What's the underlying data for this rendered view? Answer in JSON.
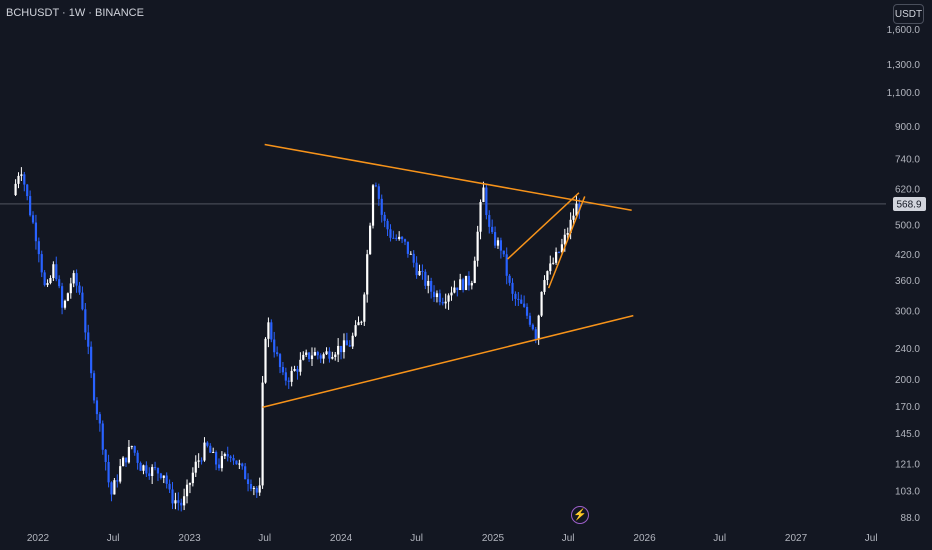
{
  "header": {
    "title": "BCHUSDT · 1W · BINANCE",
    "currency_button": "USDT"
  },
  "indicator_icon": "flash-icon",
  "colors": {
    "background": "#131722",
    "candle_up": "#ffffff",
    "candle_down": "#2962ff",
    "trendline": "#f7931a",
    "price_line": "#787b86"
  },
  "chart_data": {
    "type": "candlestick",
    "symbol": "BCHUSDT",
    "interval": "1W",
    "exchange": "BINANCE",
    "scale": "log",
    "y_ticks": [
      1600,
      1300,
      1100,
      900,
      740,
      620,
      500,
      420,
      360,
      300,
      240,
      200,
      170,
      145,
      121,
      103,
      88
    ],
    "y_tick_labels": [
      "1,600.0",
      "1,300.0",
      "1,100.0",
      "900.0",
      "740.0",
      "620.0",
      "500.0",
      "420.0",
      "360.0",
      "300.0",
      "240.0",
      "200.0",
      "170.0",
      "145.0",
      "121.0",
      "103.0",
      "88.0"
    ],
    "ylim": [
      84,
      1750
    ],
    "x_ticks": [
      {
        "label": "2022",
        "date": "2022-01-01"
      },
      {
        "label": "Jul",
        "date": "2022-07-01"
      },
      {
        "label": "2023",
        "date": "2023-01-01"
      },
      {
        "label": "Jul",
        "date": "2023-07-01"
      },
      {
        "label": "2024",
        "date": "2024-01-01"
      },
      {
        "label": "Jul",
        "date": "2024-07-01"
      },
      {
        "label": "2025",
        "date": "2025-01-01"
      },
      {
        "label": "Jul",
        "date": "2025-07-01"
      },
      {
        "label": "2026",
        "date": "2026-01-01"
      },
      {
        "label": "Jul",
        "date": "2026-07-01"
      },
      {
        "label": "2027",
        "date": "2027-01-01"
      },
      {
        "label": "Jul",
        "date": "2027-07-01"
      }
    ],
    "current_price": 568.9,
    "current_price_label": "568.9",
    "price_path": [
      [
        "2021-11-01",
        600
      ],
      [
        "2021-11-20",
        720
      ],
      [
        "2021-12-10",
        560
      ],
      [
        "2022-01-01",
        450
      ],
      [
        "2022-01-20",
        330
      ],
      [
        "2022-02-10",
        400
      ],
      [
        "2022-03-01",
        300
      ],
      [
        "2022-03-25",
        370
      ],
      [
        "2022-04-15",
        330
      ],
      [
        "2022-05-10",
        200
      ],
      [
        "2022-06-10",
        130
      ],
      [
        "2022-06-25",
        100
      ],
      [
        "2022-07-20",
        120
      ],
      [
        "2022-08-15",
        135
      ],
      [
        "2022-09-05",
        120
      ],
      [
        "2022-10-01",
        117
      ],
      [
        "2022-11-01",
        115
      ],
      [
        "2022-11-15",
        100
      ],
      [
        "2022-12-15",
        95
      ],
      [
        "2023-01-15",
        120
      ],
      [
        "2023-02-10",
        135
      ],
      [
        "2023-03-10",
        120
      ],
      [
        "2023-04-10",
        130
      ],
      [
        "2023-05-10",
        115
      ],
      [
        "2023-06-10",
        105
      ],
      [
        "2023-06-18",
        95
      ],
      [
        "2023-06-26",
        190
      ],
      [
        "2023-07-05",
        290
      ],
      [
        "2023-07-25",
        240
      ],
      [
        "2023-08-15",
        200
      ],
      [
        "2023-09-01",
        205
      ],
      [
        "2023-10-01",
        225
      ],
      [
        "2023-10-25",
        235
      ],
      [
        "2023-11-15",
        230
      ],
      [
        "2023-12-15",
        240
      ],
      [
        "2024-01-20",
        245
      ],
      [
        "2024-02-20",
        290
      ],
      [
        "2024-03-10",
        500
      ],
      [
        "2024-03-20",
        700
      ],
      [
        "2024-04-10",
        520
      ],
      [
        "2024-05-01",
        470
      ],
      [
        "2024-06-01",
        450
      ],
      [
        "2024-07-05",
        380
      ],
      [
        "2024-08-05",
        340
      ],
      [
        "2024-09-01",
        325
      ],
      [
        "2024-10-01",
        350
      ],
      [
        "2024-11-10",
        360
      ],
      [
        "2024-11-25",
        480
      ],
      [
        "2024-12-08",
        630
      ],
      [
        "2024-12-25",
        470
      ],
      [
        "2025-01-20",
        440
      ],
      [
        "2025-02-15",
        330
      ],
      [
        "2025-03-10",
        310
      ],
      [
        "2025-04-05",
        280
      ],
      [
        "2025-04-15",
        260
      ],
      [
        "2025-05-01",
        370
      ],
      [
        "2025-05-20",
        390
      ],
      [
        "2025-06-15",
        440
      ],
      [
        "2025-07-05",
        500
      ],
      [
        "2025-07-20",
        560
      ],
      [
        "2025-08-01",
        568.9
      ]
    ],
    "trendlines": [
      {
        "name": "upper-resistance",
        "from": {
          "date": "2023-07-01",
          "price": 810
        },
        "to": {
          "date": "2025-12-01",
          "price": 548
        }
      },
      {
        "name": "lower-support",
        "from": {
          "date": "2023-06-26",
          "price": 170
        },
        "to": {
          "date": "2025-12-05",
          "price": 293
        }
      },
      {
        "name": "rising-wedge-upper",
        "from": {
          "date": "2025-02-05",
          "price": 410
        },
        "to": {
          "date": "2025-07-27",
          "price": 608
        }
      },
      {
        "name": "rising-wedge-lower",
        "from": {
          "date": "2025-05-15",
          "price": 345
        },
        "to": {
          "date": "2025-08-10",
          "price": 595
        }
      }
    ]
  }
}
